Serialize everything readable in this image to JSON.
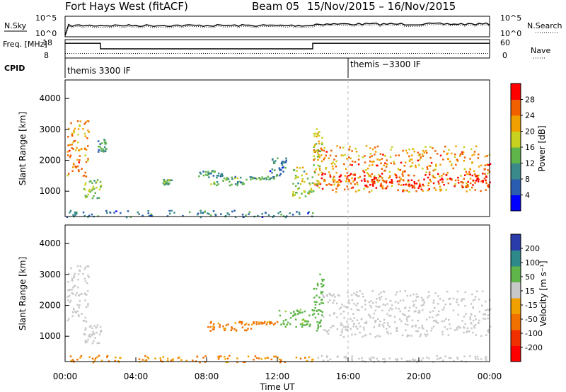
{
  "header": {
    "radar": "Fort Hays West (fitACF)",
    "beam": "Beam 05",
    "dates": "15/Nov/2015 – 16/Nov/2015"
  },
  "chart_data": [
    {
      "type": "line",
      "panel": "noise",
      "left_label": "N.Sky",
      "right_label": "N.Search",
      "left_ticks": [
        "10^5",
        "10^0"
      ],
      "right_ticks": [
        "10^5",
        "10^0"
      ],
      "series": [
        {
          "name": "N.Sky",
          "style": "solid"
        },
        {
          "name": "N.Search",
          "style": "dotted"
        }
      ],
      "x": [
        "00:00",
        "24:00"
      ],
      "ylim": [
        0,
        5
      ]
    },
    {
      "type": "line",
      "panel": "frequency",
      "left_label": "Freq. [MHz]",
      "right_label": "Nave",
      "left_ticks": [
        "18",
        "8"
      ],
      "right_ticks": [
        "60",
        "0"
      ],
      "ylim": [
        8,
        18
      ],
      "y2lim": [
        0,
        60
      ],
      "freq_steps": [
        {
          "from": 0.0,
          "to": 2.0,
          "value": 16
        },
        {
          "from": 2.0,
          "to": 14.0,
          "value": 13
        },
        {
          "from": 14.0,
          "to": 24.0,
          "value": 16
        }
      ],
      "nave": [
        {
          "from": 0.0,
          "to": 24.0,
          "value": 15
        }
      ]
    },
    {
      "type": "table",
      "panel": "cpid",
      "label": "CPID",
      "entries": [
        {
          "start": 0.0,
          "text": "themis 3300 IF"
        },
        {
          "start": 16.0,
          "text": "themis −3300 IF"
        }
      ]
    },
    {
      "type": "heatmap",
      "panel": "power",
      "ylabel": "Slant Range [km]",
      "xlabel": "",
      "xlim": [
        0,
        24
      ],
      "ylim": [
        180,
        4600
      ],
      "yticks": [
        "1000",
        "2000",
        "3000",
        "4000"
      ],
      "colorbar": {
        "label": "Power [dB]",
        "ticks": [
          "4",
          "8",
          "12",
          "16",
          "20",
          "24",
          "28"
        ],
        "range": [
          0,
          30
        ]
      },
      "regions": [
        {
          "t0": 0.1,
          "t1": 1.3,
          "r0": 1500,
          "r1": 3300,
          "level": 22
        },
        {
          "t0": 1.0,
          "t1": 2.0,
          "r0": 800,
          "r1": 1400,
          "level": 14
        },
        {
          "t0": 1.8,
          "t1": 2.3,
          "r0": 2300,
          "r1": 2700,
          "level": 10
        },
        {
          "t0": 5.5,
          "t1": 6.0,
          "r0": 1200,
          "r1": 1400,
          "level": 12
        },
        {
          "t0": 7.5,
          "t1": 9.0,
          "r0": 1500,
          "r1": 1700,
          "level": 10
        },
        {
          "t0": 8.0,
          "t1": 10.5,
          "r0": 1200,
          "r1": 1500,
          "level": 12
        },
        {
          "t0": 10.5,
          "t1": 12.0,
          "r0": 1400,
          "r1": 1500,
          "level": 12
        },
        {
          "t0": 11.5,
          "t1": 12.5,
          "r0": 1500,
          "r1": 2100,
          "level": 8
        },
        {
          "t0": 12.8,
          "t1": 14.0,
          "r0": 800,
          "r1": 1800,
          "level": 15
        },
        {
          "t0": 14.0,
          "t1": 24.0,
          "r0": 1000,
          "r1": 2500,
          "level": 22
        },
        {
          "t0": 14.2,
          "t1": 24.0,
          "r0": 1100,
          "r1": 1600,
          "level": 28
        },
        {
          "t0": 14.0,
          "t1": 14.5,
          "r0": 1200,
          "r1": 3100,
          "level": 18
        },
        {
          "t0": 0.0,
          "t1": 14.0,
          "r0": 180,
          "r1": 400,
          "level": 8
        }
      ]
    },
    {
      "type": "heatmap",
      "panel": "velocity",
      "ylabel": "Slant Range [km]",
      "xlabel": "Time UT",
      "xlim": [
        0,
        24
      ],
      "ylim": [
        180,
        4600
      ],
      "yticks": [
        "1000",
        "2000",
        "3000",
        "4000"
      ],
      "xticks": [
        "00:00",
        "04:00",
        "08:00",
        "12:00",
        "16:00",
        "20:00",
        "00:00"
      ],
      "colorbar": {
        "label": "Velocity [m s⁻¹]",
        "ticks": [
          "200",
          "100",
          "50",
          "15",
          "-15",
          "-50",
          "-100",
          "-200"
        ],
        "range": [
          -250,
          250
        ]
      },
      "regions": [
        {
          "t0": 0.1,
          "t1": 1.3,
          "r0": 1500,
          "r1": 3300,
          "level": 0
        },
        {
          "t0": 1.0,
          "t1": 2.0,
          "r0": 800,
          "r1": 1400,
          "level": 0
        },
        {
          "t0": 8.0,
          "t1": 10.5,
          "r0": 1200,
          "r1": 1500,
          "level": -60
        },
        {
          "t0": 10.5,
          "t1": 12.0,
          "r0": 1400,
          "r1": 1500,
          "level": -60
        },
        {
          "t0": 12.0,
          "t1": 14.0,
          "r0": 1300,
          "r1": 1900,
          "level": 40
        },
        {
          "t0": 14.0,
          "t1": 14.6,
          "r0": 1200,
          "r1": 3100,
          "level": 60
        },
        {
          "t0": 14.5,
          "t1": 24.0,
          "r0": 1000,
          "r1": 2500,
          "level": 0
        },
        {
          "t0": 0.0,
          "t1": 14.0,
          "r0": 180,
          "r1": 400,
          "level": -50
        },
        {
          "t0": 14.0,
          "t1": 24.0,
          "r0": 180,
          "r1": 400,
          "level": 0
        }
      ]
    }
  ]
}
